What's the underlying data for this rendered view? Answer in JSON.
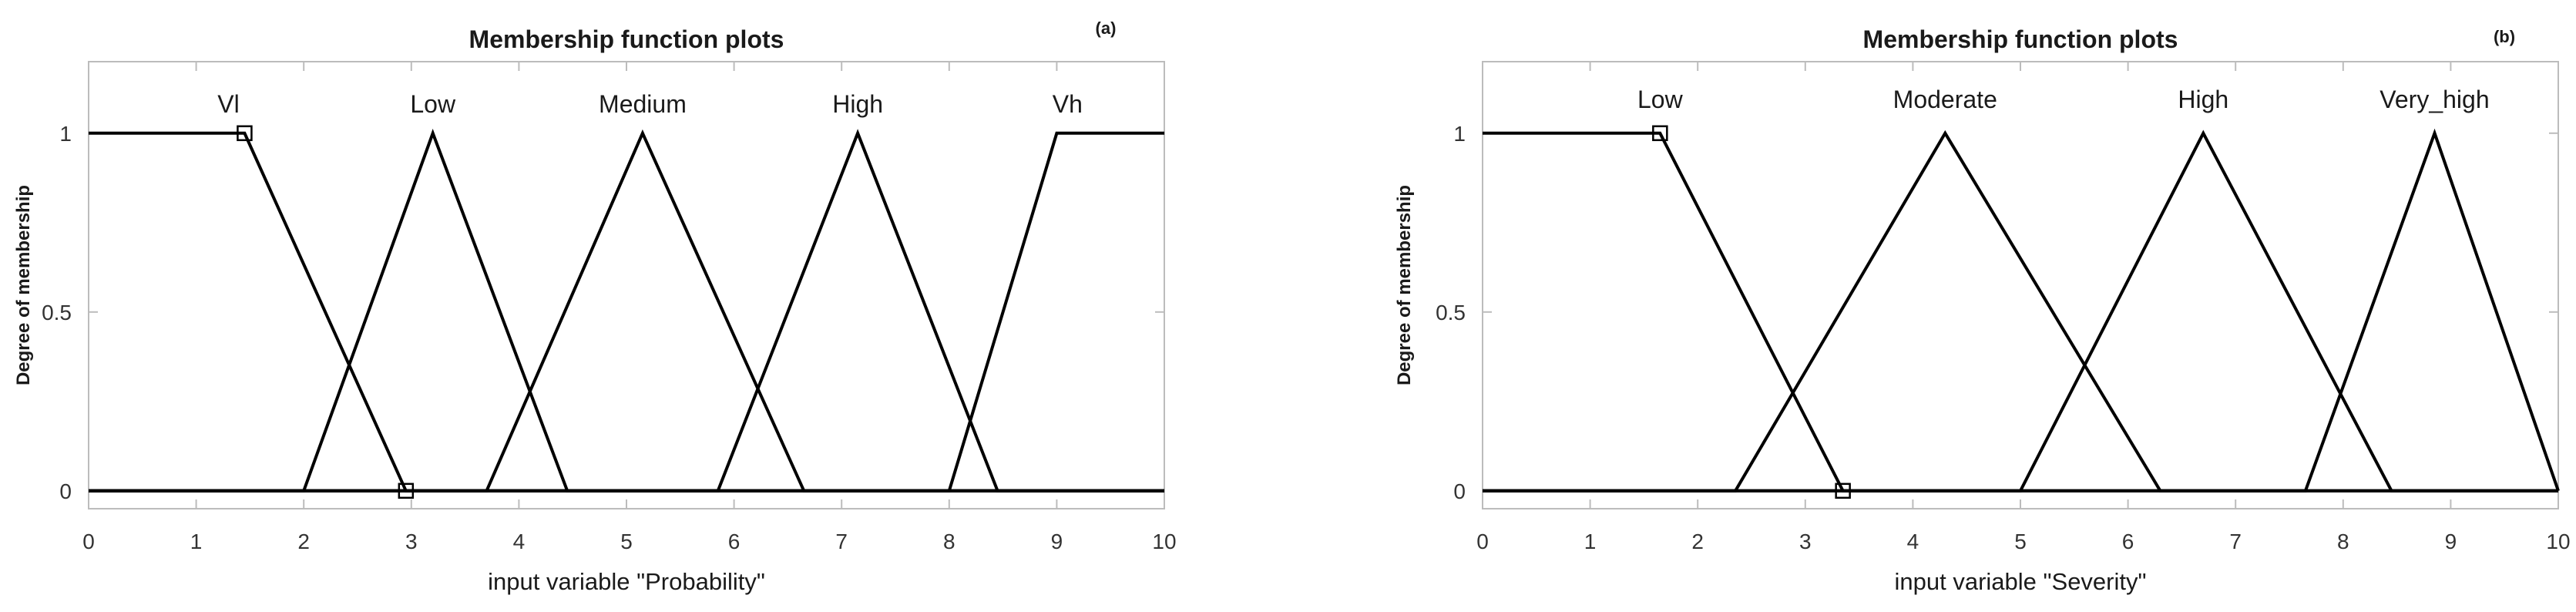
{
  "chart_data": [
    {
      "type": "line",
      "title": "Membership function plots",
      "panel_label": "(a)",
      "xlabel": "input variable \"Probability\"",
      "ylabel": "Degree of membership",
      "xlim": [
        0,
        10
      ],
      "ylim": [
        -0.05,
        1.2
      ],
      "x_ticks": [
        0,
        1,
        2,
        3,
        4,
        5,
        6,
        7,
        8,
        9,
        10
      ],
      "y_ticks": [
        0,
        0.5,
        1
      ],
      "grid": false,
      "series": [
        {
          "name": "Vl",
          "x": [
            0,
            1.45,
            2.95,
            10
          ],
          "y": [
            1,
            1,
            0,
            0
          ],
          "label_x": 1.3
        },
        {
          "name": "Low",
          "x": [
            0,
            2,
            3.2,
            4.45,
            10
          ],
          "y": [
            0,
            0,
            1,
            0,
            0
          ],
          "label_x": 3.2
        },
        {
          "name": "Medium",
          "x": [
            0,
            3.7,
            5.15,
            6.65,
            10
          ],
          "y": [
            0,
            0,
            1,
            0,
            0
          ],
          "label_x": 5.15
        },
        {
          "name": "High",
          "x": [
            0,
            5.85,
            7.15,
            8.45,
            10
          ],
          "y": [
            0,
            0,
            1,
            0,
            0
          ],
          "label_x": 7.15
        },
        {
          "name": "Vh",
          "x": [
            0,
            8,
            9,
            10
          ],
          "y": [
            0,
            0,
            1,
            1
          ],
          "label_x": 9.1
        }
      ],
      "markers": [
        {
          "x": 1.45,
          "y": 1
        },
        {
          "x": 2.95,
          "y": 0
        }
      ]
    },
    {
      "type": "line",
      "title": "Membership function plots",
      "panel_label": "(b)",
      "xlabel": "input variable \"Severity\"",
      "ylabel": "Degree of membership",
      "xlim": [
        0,
        10
      ],
      "ylim": [
        -0.05,
        1.2
      ],
      "x_ticks": [
        0,
        1,
        2,
        3,
        4,
        5,
        6,
        7,
        8,
        9,
        10
      ],
      "y_ticks": [
        0,
        0.5,
        1
      ],
      "grid": false,
      "series": [
        {
          "name": "Low",
          "x": [
            0,
            1.65,
            3.35,
            10
          ],
          "y": [
            1,
            1,
            0,
            0
          ],
          "label_x": 1.65
        },
        {
          "name": "Moderate",
          "x": [
            0,
            2.35,
            4.3,
            6.3,
            10
          ],
          "y": [
            0,
            0,
            1,
            0,
            0
          ],
          "label_x": 4.3
        },
        {
          "name": "High",
          "x": [
            0,
            5,
            6.7,
            8.45,
            10
          ],
          "y": [
            0,
            0,
            1,
            0,
            0
          ],
          "label_x": 6.7
        },
        {
          "name": "Very_high",
          "x": [
            0,
            7.65,
            8.85,
            10
          ],
          "y": [
            0,
            0,
            1,
            0
          ],
          "label_x": 8.85
        }
      ],
      "markers": [
        {
          "x": 1.65,
          "y": 1
        },
        {
          "x": 3.35,
          "y": 0
        }
      ]
    }
  ]
}
